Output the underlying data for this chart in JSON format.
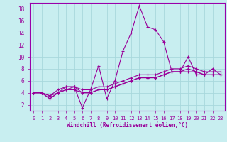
{
  "title": "",
  "xlabel": "Windchill (Refroidissement éolien,°C)",
  "ylabel": "",
  "bg_color": "#c8eef0",
  "grid_color": "#a8d8dc",
  "line_color": "#990099",
  "spine_color": "#9900aa",
  "xlim": [
    -0.5,
    23.5
  ],
  "ylim": [
    1,
    19
  ],
  "xticks": [
    0,
    1,
    2,
    3,
    4,
    5,
    6,
    7,
    8,
    9,
    10,
    11,
    12,
    13,
    14,
    15,
    16,
    17,
    18,
    19,
    20,
    21,
    22,
    23
  ],
  "yticks": [
    2,
    4,
    6,
    8,
    10,
    12,
    14,
    16,
    18
  ],
  "series": [
    {
      "x": [
        0,
        1,
        2,
        3,
        4,
        5,
        6,
        7,
        8,
        9,
        10,
        11,
        12,
        13,
        14,
        15,
        16,
        17,
        18,
        19,
        20,
        21,
        22,
        23
      ],
      "y": [
        4,
        4,
        3,
        4,
        5,
        5,
        1.5,
        4.5,
        8.5,
        3,
        6,
        11,
        14,
        18.5,
        15,
        14.5,
        12.5,
        7.5,
        7.5,
        10,
        7,
        7,
        8,
        7
      ]
    },
    {
      "x": [
        0,
        1,
        2,
        3,
        4,
        5,
        6,
        7,
        8,
        9,
        10,
        11,
        12,
        13,
        14,
        15,
        16,
        17,
        18,
        19,
        20,
        21,
        22,
        23
      ],
      "y": [
        4,
        4,
        3,
        4,
        4.5,
        5,
        4,
        4,
        4.5,
        4.5,
        5,
        5.5,
        6,
        6.5,
        6.5,
        6.5,
        7,
        7.5,
        7.5,
        8,
        7.5,
        7,
        7,
        7
      ]
    },
    {
      "x": [
        0,
        1,
        2,
        3,
        4,
        5,
        6,
        7,
        8,
        9,
        10,
        11,
        12,
        13,
        14,
        15,
        16,
        17,
        18,
        19,
        20,
        21,
        22,
        23
      ],
      "y": [
        4,
        4,
        3.5,
        4.5,
        5,
        5,
        4.5,
        4.5,
        5,
        5,
        5.5,
        6,
        6.5,
        7,
        7,
        7,
        7.5,
        8,
        8,
        8.5,
        8,
        7.5,
        7.5,
        7.5
      ]
    },
    {
      "x": [
        0,
        1,
        2,
        3,
        4,
        5,
        6,
        7,
        8,
        9,
        10,
        11,
        12,
        13,
        14,
        15,
        16,
        17,
        18,
        19,
        20,
        21,
        22,
        23
      ],
      "y": [
        4,
        4,
        3.5,
        4,
        4.5,
        4.5,
        4,
        4,
        4.5,
        4.5,
        5,
        5.5,
        6,
        6.5,
        6.5,
        6.5,
        7,
        7.5,
        7.5,
        7.5,
        7.5,
        7,
        7,
        7
      ]
    }
  ]
}
